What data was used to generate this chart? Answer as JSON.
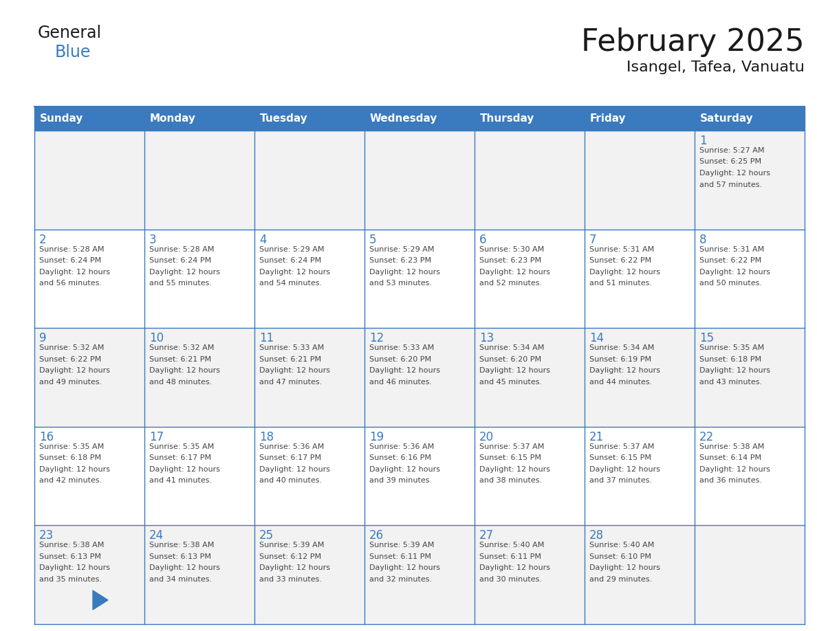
{
  "title": "February 2025",
  "subtitle": "Isangel, Tafea, Vanuatu",
  "days_of_week": [
    "Sunday",
    "Monday",
    "Tuesday",
    "Wednesday",
    "Thursday",
    "Friday",
    "Saturday"
  ],
  "header_bg": "#3a7abf",
  "header_text": "#ffffff",
  "cell_bg_even": "#f2f2f2",
  "cell_bg_odd": "#ffffff",
  "border_color": "#3a7abf",
  "day_num_color": "#3a7abf",
  "info_color": "#444444",
  "title_color": "#1a1a1a",
  "subtitle_color": "#1a1a1a",
  "logo_general_color": "#1a1a1a",
  "logo_blue_color": "#3a7abf",
  "calendar_data": [
    [
      null,
      null,
      null,
      null,
      null,
      null,
      {
        "day": 1,
        "sunrise": "5:27 AM",
        "sunset": "6:25 PM",
        "daylight": "12 hours and 57 minutes."
      }
    ],
    [
      {
        "day": 2,
        "sunrise": "5:28 AM",
        "sunset": "6:24 PM",
        "daylight": "12 hours and 56 minutes."
      },
      {
        "day": 3,
        "sunrise": "5:28 AM",
        "sunset": "6:24 PM",
        "daylight": "12 hours and 55 minutes."
      },
      {
        "day": 4,
        "sunrise": "5:29 AM",
        "sunset": "6:24 PM",
        "daylight": "12 hours and 54 minutes."
      },
      {
        "day": 5,
        "sunrise": "5:29 AM",
        "sunset": "6:23 PM",
        "daylight": "12 hours and 53 minutes."
      },
      {
        "day": 6,
        "sunrise": "5:30 AM",
        "sunset": "6:23 PM",
        "daylight": "12 hours and 52 minutes."
      },
      {
        "day": 7,
        "sunrise": "5:31 AM",
        "sunset": "6:22 PM",
        "daylight": "12 hours and 51 minutes."
      },
      {
        "day": 8,
        "sunrise": "5:31 AM",
        "sunset": "6:22 PM",
        "daylight": "12 hours and 50 minutes."
      }
    ],
    [
      {
        "day": 9,
        "sunrise": "5:32 AM",
        "sunset": "6:22 PM",
        "daylight": "12 hours and 49 minutes."
      },
      {
        "day": 10,
        "sunrise": "5:32 AM",
        "sunset": "6:21 PM",
        "daylight": "12 hours and 48 minutes."
      },
      {
        "day": 11,
        "sunrise": "5:33 AM",
        "sunset": "6:21 PM",
        "daylight": "12 hours and 47 minutes."
      },
      {
        "day": 12,
        "sunrise": "5:33 AM",
        "sunset": "6:20 PM",
        "daylight": "12 hours and 46 minutes."
      },
      {
        "day": 13,
        "sunrise": "5:34 AM",
        "sunset": "6:20 PM",
        "daylight": "12 hours and 45 minutes."
      },
      {
        "day": 14,
        "sunrise": "5:34 AM",
        "sunset": "6:19 PM",
        "daylight": "12 hours and 44 minutes."
      },
      {
        "day": 15,
        "sunrise": "5:35 AM",
        "sunset": "6:18 PM",
        "daylight": "12 hours and 43 minutes."
      }
    ],
    [
      {
        "day": 16,
        "sunrise": "5:35 AM",
        "sunset": "6:18 PM",
        "daylight": "12 hours and 42 minutes."
      },
      {
        "day": 17,
        "sunrise": "5:35 AM",
        "sunset": "6:17 PM",
        "daylight": "12 hours and 41 minutes."
      },
      {
        "day": 18,
        "sunrise": "5:36 AM",
        "sunset": "6:17 PM",
        "daylight": "12 hours and 40 minutes."
      },
      {
        "day": 19,
        "sunrise": "5:36 AM",
        "sunset": "6:16 PM",
        "daylight": "12 hours and 39 minutes."
      },
      {
        "day": 20,
        "sunrise": "5:37 AM",
        "sunset": "6:15 PM",
        "daylight": "12 hours and 38 minutes."
      },
      {
        "day": 21,
        "sunrise": "5:37 AM",
        "sunset": "6:15 PM",
        "daylight": "12 hours and 37 minutes."
      },
      {
        "day": 22,
        "sunrise": "5:38 AM",
        "sunset": "6:14 PM",
        "daylight": "12 hours and 36 minutes."
      }
    ],
    [
      {
        "day": 23,
        "sunrise": "5:38 AM",
        "sunset": "6:13 PM",
        "daylight": "12 hours and 35 minutes."
      },
      {
        "day": 24,
        "sunrise": "5:38 AM",
        "sunset": "6:13 PM",
        "daylight": "12 hours and 34 minutes."
      },
      {
        "day": 25,
        "sunrise": "5:39 AM",
        "sunset": "6:12 PM",
        "daylight": "12 hours and 33 minutes."
      },
      {
        "day": 26,
        "sunrise": "5:39 AM",
        "sunset": "6:11 PM",
        "daylight": "12 hours and 32 minutes."
      },
      {
        "day": 27,
        "sunrise": "5:40 AM",
        "sunset": "6:11 PM",
        "daylight": "12 hours and 30 minutes."
      },
      {
        "day": 28,
        "sunrise": "5:40 AM",
        "sunset": "6:10 PM",
        "daylight": "12 hours and 29 minutes."
      },
      null
    ]
  ]
}
